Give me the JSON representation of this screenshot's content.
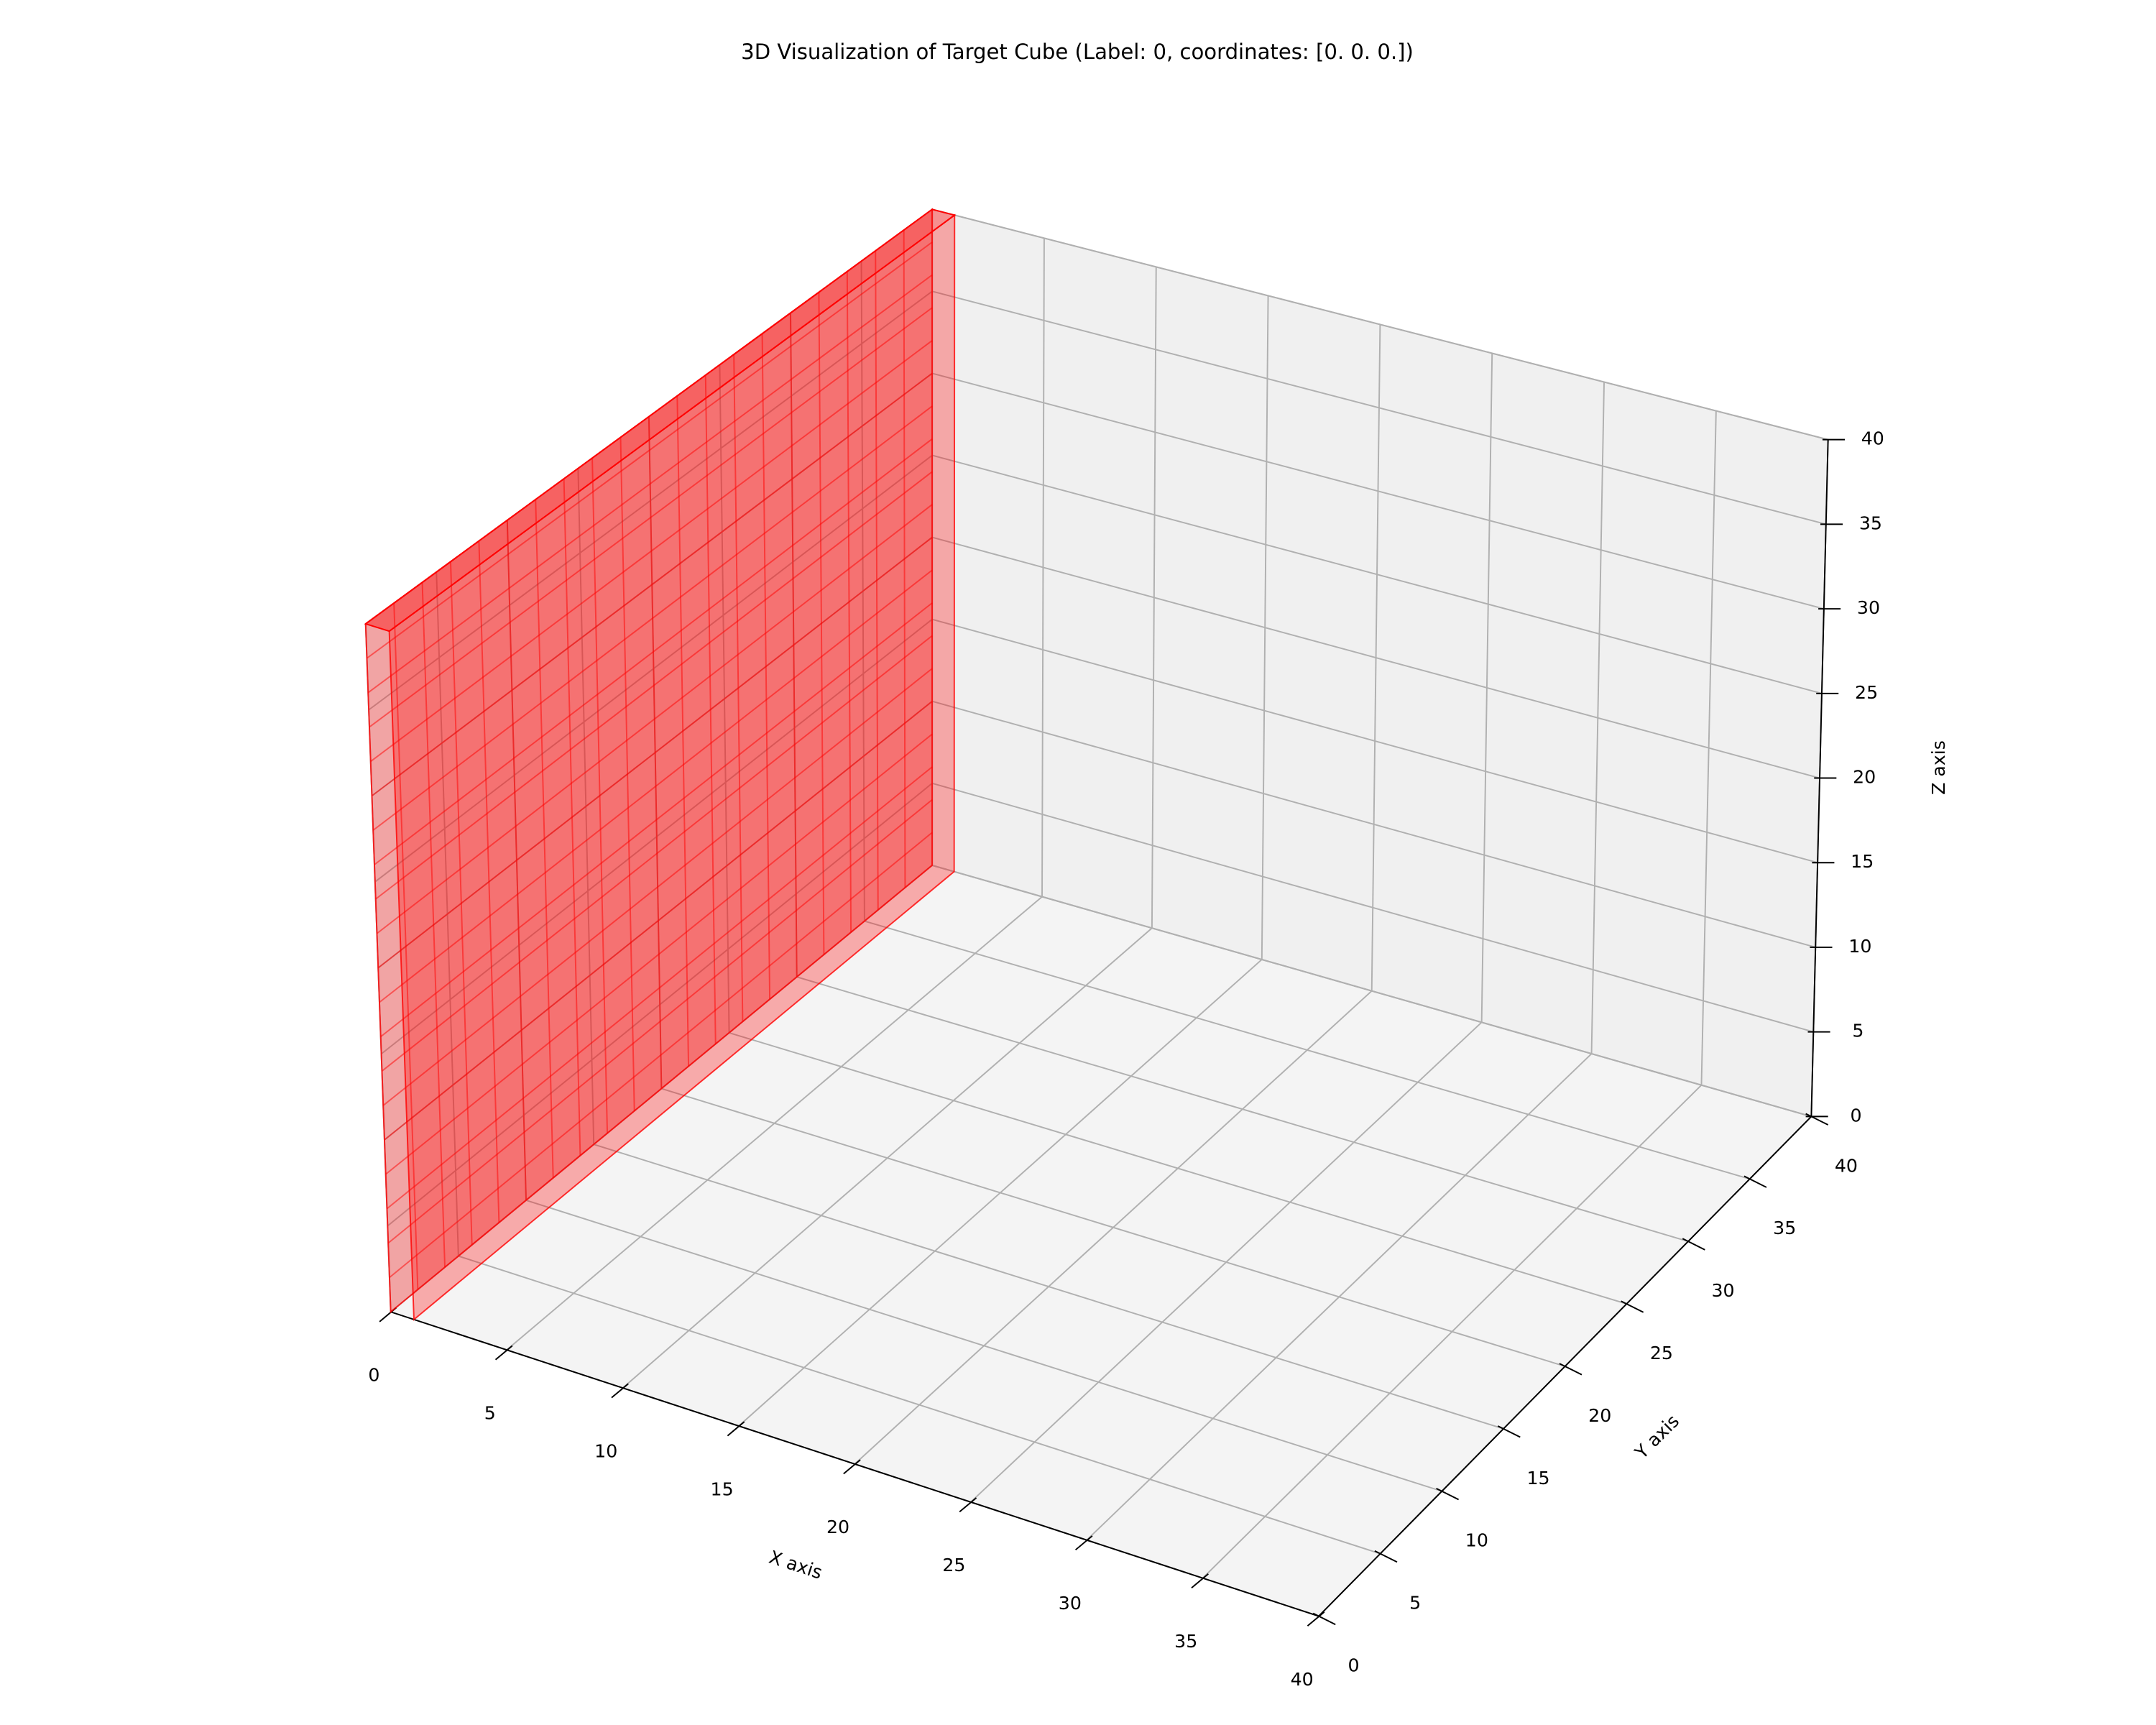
{
  "chart_data": {
    "type": "voxel3d",
    "title": "3D Visualization of Target Cube (Label: 0, coordinates: [0. 0. 0.])",
    "x_label": "X axis",
    "y_label": "Y axis",
    "z_label": "Z axis",
    "xlim": [
      0,
      40
    ],
    "ylim": [
      0,
      40
    ],
    "zlim": [
      0,
      40
    ],
    "xticks": [
      0,
      5,
      10,
      15,
      20,
      25,
      30,
      35,
      40
    ],
    "yticks": [
      0,
      5,
      10,
      15,
      20,
      25,
      30,
      35,
      40
    ],
    "zticks": [
      0,
      5,
      10,
      15,
      20,
      25,
      30,
      35,
      40
    ],
    "grid": true,
    "voxels": [
      {
        "x": [
          0,
          1
        ],
        "y": [
          0,
          40
        ],
        "z": [
          0,
          40
        ],
        "color": "#ff0000"
      }
    ]
  }
}
